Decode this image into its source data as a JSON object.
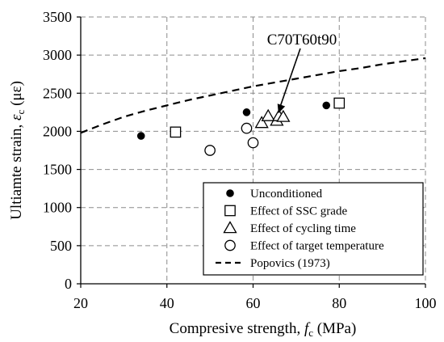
{
  "chart_data": {
    "type": "scatter",
    "xlabel": "Compresive strength, fc (MPa)",
    "xlabel_parts": {
      "before": "Compresive strength, ",
      "symbol": "f",
      "subscript": "c",
      "after": " (MPa)"
    },
    "ylabel": "Ultiamte strain, εc (με)",
    "ylabel_parts": {
      "before": "Ultiamte strain, ",
      "symbol": "ε",
      "subscript": "c",
      "after": " (με)"
    },
    "xlim": [
      20,
      100
    ],
    "ylim": [
      0,
      3500
    ],
    "xticks": [
      "20",
      "40",
      "60",
      "80",
      "100"
    ],
    "yticks": [
      "0",
      "500",
      "1000",
      "1500",
      "2000",
      "2500",
      "3000",
      "3500"
    ],
    "grid": true,
    "legend_position": "bottom-right",
    "annotation": {
      "text": "C70T60t90",
      "points_to": {
        "x": 65.5,
        "y": 2150
      }
    },
    "series": [
      {
        "name": "Unconditioned",
        "marker": "filled-circle",
        "points": [
          {
            "x": 34,
            "y": 1940
          },
          {
            "x": 58.5,
            "y": 2250
          },
          {
            "x": 77,
            "y": 2340
          }
        ]
      },
      {
        "name": "Effect of SSC grade",
        "marker": "open-square",
        "points": [
          {
            "x": 42,
            "y": 1990
          },
          {
            "x": 80,
            "y": 2370
          }
        ]
      },
      {
        "name": "Effect of cycling time",
        "marker": "open-triangle",
        "points": [
          {
            "x": 62,
            "y": 2110
          },
          {
            "x": 63.5,
            "y": 2200
          },
          {
            "x": 65.5,
            "y": 2140
          },
          {
            "x": 66,
            "y": 2200
          },
          {
            "x": 67,
            "y": 2190
          }
        ]
      },
      {
        "name": "Effect of target temperature",
        "marker": "open-circle",
        "points": [
          {
            "x": 50,
            "y": 1750
          },
          {
            "x": 58.5,
            "y": 2040
          },
          {
            "x": 60,
            "y": 1850
          }
        ]
      },
      {
        "name": "Popovics (1973)",
        "marker": "dashed-line",
        "curve": {
          "x": [
            20,
            25,
            30,
            35,
            40,
            45,
            50,
            55,
            60,
            65,
            70,
            75,
            80,
            85,
            90,
            95,
            100
          ],
          "y": [
            1980,
            2090,
            2190,
            2270,
            2340,
            2410,
            2470,
            2530,
            2590,
            2640,
            2690,
            2740,
            2790,
            2830,
            2880,
            2920,
            2960
          ]
        }
      }
    ]
  }
}
